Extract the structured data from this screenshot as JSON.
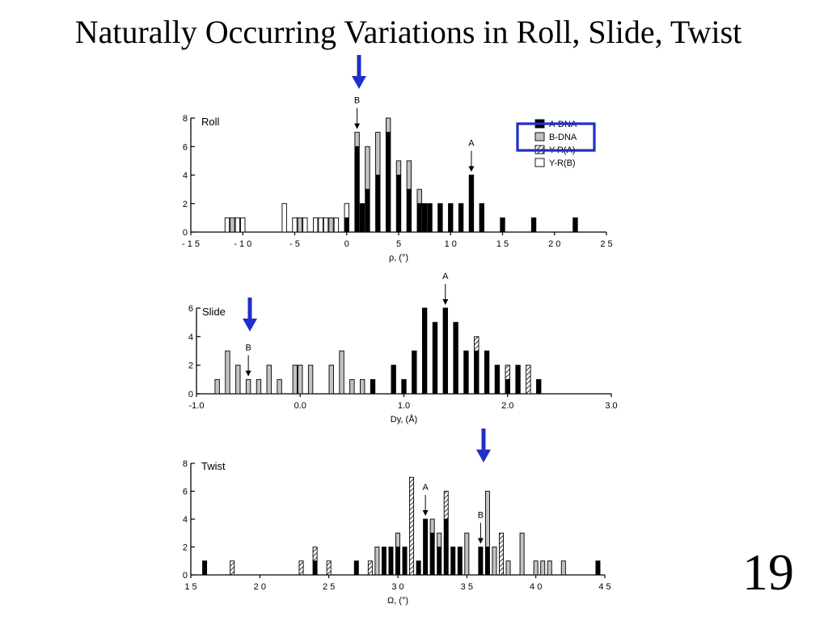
{
  "slide": {
    "title": "Naturally Occurring Variations in Roll, Slide, Twist",
    "number": "19",
    "highlight_color": "#1f2fc8"
  },
  "legend": {
    "items": [
      {
        "key": "A",
        "label": "A-DNA",
        "fill": "black"
      },
      {
        "key": "B",
        "label": "B-DNA",
        "fill": "gray"
      },
      {
        "key": "YA",
        "label": "Y-R(A)",
        "fill": "hatch"
      },
      {
        "key": "YB",
        "label": "Y-R(B)",
        "fill": "white"
      }
    ]
  },
  "chart_data": [
    {
      "type": "bar",
      "panel": "Roll",
      "title": "Roll",
      "xlabel": "ρ, (°)",
      "xlim": [
        -15,
        25
      ],
      "ylim": [
        0,
        8
      ],
      "xticks": [
        -15,
        -10,
        -5,
        0,
        5,
        10,
        15,
        20,
        25
      ],
      "xtick_labels": [
        "- 1 5",
        "- 1 0",
        "- 5",
        "0",
        "5",
        "1 0",
        "1 5",
        "2 0",
        "2 5"
      ],
      "yticks": [
        0,
        2,
        4,
        6,
        8
      ],
      "ytick_labels": [
        "0",
        "2",
        "4",
        "6",
        "8"
      ],
      "bar_width": 0.5,
      "series_order": [
        "A",
        "B",
        "YA",
        "YB"
      ],
      "bars": [
        {
          "x": -11.5,
          "A": 0,
          "B": 0,
          "YA": 0,
          "YB": 1
        },
        {
          "x": -11,
          "A": 0,
          "B": 1,
          "YA": 0,
          "YB": 0
        },
        {
          "x": -10.5,
          "A": 0,
          "B": 0,
          "YA": 0,
          "YB": 1
        },
        {
          "x": -10,
          "A": 0,
          "B": 0,
          "YA": 0,
          "YB": 1
        },
        {
          "x": -6,
          "A": 0,
          "B": 0,
          "YA": 0,
          "YB": 2
        },
        {
          "x": -5,
          "A": 0,
          "B": 0,
          "YA": 0,
          "YB": 1
        },
        {
          "x": -4.5,
          "A": 0,
          "B": 1,
          "YA": 0,
          "YB": 0
        },
        {
          "x": -4,
          "A": 0,
          "B": 0,
          "YA": 0,
          "YB": 1
        },
        {
          "x": -3,
          "A": 0,
          "B": 0,
          "YA": 0,
          "YB": 1
        },
        {
          "x": -2.5,
          "A": 0,
          "B": 0,
          "YA": 0,
          "YB": 1
        },
        {
          "x": -2,
          "A": 0,
          "B": 0,
          "YA": 0,
          "YB": 1
        },
        {
          "x": -1.5,
          "A": 0,
          "B": 1,
          "YA": 0,
          "YB": 0
        },
        {
          "x": -1,
          "A": 0,
          "B": 0,
          "YA": 0,
          "YB": 1
        },
        {
          "x": 0,
          "A": 1,
          "B": 0,
          "YA": 0,
          "YB": 1
        },
        {
          "x": 1,
          "A": 6,
          "B": 1,
          "YA": 0,
          "YB": 0
        },
        {
          "x": 1.5,
          "A": 2,
          "B": 0,
          "YA": 0,
          "YB": 0
        },
        {
          "x": 2,
          "A": 3,
          "B": 3,
          "YA": 0,
          "YB": 0
        },
        {
          "x": 3,
          "A": 4,
          "B": 3,
          "YA": 0,
          "YB": 0
        },
        {
          "x": 4,
          "A": 7,
          "B": 1,
          "YA": 0,
          "YB": 0
        },
        {
          "x": 5,
          "A": 4,
          "B": 1,
          "YA": 0,
          "YB": 0
        },
        {
          "x": 6,
          "A": 3,
          "B": 2,
          "YA": 0,
          "YB": 0
        },
        {
          "x": 7,
          "A": 2,
          "B": 1,
          "YA": 0,
          "YB": 0
        },
        {
          "x": 7.5,
          "A": 2,
          "B": 0,
          "YA": 0,
          "YB": 0
        },
        {
          "x": 8,
          "A": 2,
          "B": 0,
          "YA": 0,
          "YB": 0
        },
        {
          "x": 9,
          "A": 2,
          "B": 0,
          "YA": 0,
          "YB": 0
        },
        {
          "x": 10,
          "A": 2,
          "B": 0,
          "YA": 0,
          "YB": 0
        },
        {
          "x": 11,
          "A": 2,
          "B": 0,
          "YA": 0,
          "YB": 0
        },
        {
          "x": 12,
          "A": 4,
          "B": 0,
          "YA": 0,
          "YB": 0
        },
        {
          "x": 13,
          "A": 2,
          "B": 0,
          "YA": 0,
          "YB": 0
        },
        {
          "x": 15,
          "A": 1,
          "B": 0,
          "YA": 0,
          "YB": 0
        },
        {
          "x": 18,
          "A": 1,
          "B": 0,
          "YA": 0,
          "YB": 0
        },
        {
          "x": 22,
          "A": 1,
          "B": 0,
          "YA": 0,
          "YB": 0
        }
      ],
      "annotations": [
        {
          "label": "B",
          "x": 1
        },
        {
          "label": "A",
          "x": 12
        }
      ]
    },
    {
      "type": "bar",
      "panel": "Slide",
      "title": "Slide",
      "xlabel": "Dy, (Å)",
      "xlim": [
        -1.0,
        3.0
      ],
      "ylim": [
        0,
        6
      ],
      "xticks": [
        -1.0,
        0.0,
        1.0,
        2.0,
        3.0
      ],
      "xtick_labels": [
        "-1.0",
        "0.0",
        "1.0",
        "2.0",
        "3.0"
      ],
      "yticks": [
        0,
        2,
        4,
        6
      ],
      "ytick_labels": [
        "0",
        "2",
        "4",
        "6"
      ],
      "bar_width": 0.05,
      "series_order": [
        "A",
        "B",
        "YA",
        "YB"
      ],
      "bars": [
        {
          "x": -0.8,
          "A": 0,
          "B": 1,
          "YA": 0,
          "YB": 0
        },
        {
          "x": -0.7,
          "A": 0,
          "B": 3,
          "YA": 0,
          "YB": 0
        },
        {
          "x": -0.6,
          "A": 0,
          "B": 2,
          "YA": 0,
          "YB": 0
        },
        {
          "x": -0.5,
          "A": 0,
          "B": 1,
          "YA": 0,
          "YB": 0
        },
        {
          "x": -0.4,
          "A": 0,
          "B": 1,
          "YA": 0,
          "YB": 0
        },
        {
          "x": -0.3,
          "A": 0,
          "B": 2,
          "YA": 0,
          "YB": 0
        },
        {
          "x": -0.2,
          "A": 0,
          "B": 1,
          "YA": 0,
          "YB": 0
        },
        {
          "x": -0.05,
          "A": 0,
          "B": 2,
          "YA": 0,
          "YB": 0
        },
        {
          "x": 0.0,
          "A": 0,
          "B": 2,
          "YA": 0,
          "YB": 0
        },
        {
          "x": 0.1,
          "A": 0,
          "B": 2,
          "YA": 0,
          "YB": 0
        },
        {
          "x": 0.3,
          "A": 0,
          "B": 2,
          "YA": 0,
          "YB": 0
        },
        {
          "x": 0.4,
          "A": 0,
          "B": 3,
          "YA": 0,
          "YB": 0
        },
        {
          "x": 0.5,
          "A": 0,
          "B": 1,
          "YA": 0,
          "YB": 0
        },
        {
          "x": 0.6,
          "A": 0,
          "B": 1,
          "YA": 0,
          "YB": 0
        },
        {
          "x": 0.7,
          "A": 1,
          "B": 0,
          "YA": 0,
          "YB": 0
        },
        {
          "x": 0.9,
          "A": 2,
          "B": 0,
          "YA": 0,
          "YB": 0
        },
        {
          "x": 1.0,
          "A": 1,
          "B": 0,
          "YA": 0,
          "YB": 0
        },
        {
          "x": 1.1,
          "A": 3,
          "B": 0,
          "YA": 0,
          "YB": 0
        },
        {
          "x": 1.2,
          "A": 6,
          "B": 0,
          "YA": 0,
          "YB": 0
        },
        {
          "x": 1.3,
          "A": 5,
          "B": 0,
          "YA": 0,
          "YB": 0
        },
        {
          "x": 1.4,
          "A": 6,
          "B": 0,
          "YA": 0,
          "YB": 0
        },
        {
          "x": 1.5,
          "A": 5,
          "B": 0,
          "YA": 0,
          "YB": 0
        },
        {
          "x": 1.6,
          "A": 3,
          "B": 0,
          "YA": 0,
          "YB": 0
        },
        {
          "x": 1.7,
          "A": 3,
          "B": 0,
          "YA": 1,
          "YB": 0
        },
        {
          "x": 1.8,
          "A": 3,
          "B": 0,
          "YA": 0,
          "YB": 0
        },
        {
          "x": 1.9,
          "A": 2,
          "B": 0,
          "YA": 0,
          "YB": 0
        },
        {
          "x": 2.0,
          "A": 1,
          "B": 0,
          "YA": 1,
          "YB": 0
        },
        {
          "x": 2.1,
          "A": 2,
          "B": 0,
          "YA": 0,
          "YB": 0
        },
        {
          "x": 2.2,
          "A": 0,
          "B": 0,
          "YA": 2,
          "YB": 0
        },
        {
          "x": 2.3,
          "A": 1,
          "B": 0,
          "YA": 0,
          "YB": 0
        }
      ],
      "annotations": [
        {
          "label": "B",
          "x": -0.5
        },
        {
          "label": "A",
          "x": 1.4
        }
      ]
    },
    {
      "type": "bar",
      "panel": "Twist",
      "title": "Twist",
      "xlabel": "Ω, (°)",
      "xlim": [
        15,
        45
      ],
      "ylim": [
        0,
        8
      ],
      "xticks": [
        15,
        20,
        25,
        30,
        35,
        40,
        45
      ],
      "xtick_labels": [
        "1 5",
        "2 0",
        "2 5",
        "3 0",
        "3 5",
        "4 0",
        "4 5"
      ],
      "yticks": [
        0,
        2,
        4,
        6,
        8
      ],
      "ytick_labels": [
        "0",
        "2",
        "4",
        "6",
        "8"
      ],
      "bar_width": 0.35,
      "series_order": [
        "A",
        "B",
        "YA",
        "YB"
      ],
      "bars": [
        {
          "x": 16,
          "A": 1,
          "B": 0,
          "YA": 0,
          "YB": 0
        },
        {
          "x": 18,
          "A": 0,
          "B": 0,
          "YA": 1,
          "YB": 0
        },
        {
          "x": 23,
          "A": 0,
          "B": 0,
          "YA": 1,
          "YB": 0
        },
        {
          "x": 24,
          "A": 1,
          "B": 0,
          "YA": 1,
          "YB": 0
        },
        {
          "x": 25,
          "A": 0,
          "B": 0,
          "YA": 1,
          "YB": 0
        },
        {
          "x": 27,
          "A": 1,
          "B": 0,
          "YA": 0,
          "YB": 0
        },
        {
          "x": 28,
          "A": 0,
          "B": 0,
          "YA": 1,
          "YB": 0
        },
        {
          "x": 28.5,
          "A": 0,
          "B": 2,
          "YA": 0,
          "YB": 0
        },
        {
          "x": 29,
          "A": 2,
          "B": 0,
          "YA": 0,
          "YB": 0
        },
        {
          "x": 29.5,
          "A": 2,
          "B": 0,
          "YA": 0,
          "YB": 0
        },
        {
          "x": 30,
          "A": 2,
          "B": 1,
          "YA": 0,
          "YB": 0
        },
        {
          "x": 30.5,
          "A": 2,
          "B": 0,
          "YA": 0,
          "YB": 0
        },
        {
          "x": 31,
          "A": 0,
          "B": 0,
          "YA": 7,
          "YB": 0
        },
        {
          "x": 31.5,
          "A": 1,
          "B": 0,
          "YA": 0,
          "YB": 0
        },
        {
          "x": 32,
          "A": 4,
          "B": 0,
          "YA": 0,
          "YB": 0
        },
        {
          "x": 32.5,
          "A": 3,
          "B": 1,
          "YA": 0,
          "YB": 0
        },
        {
          "x": 33,
          "A": 2,
          "B": 1,
          "YA": 0,
          "YB": 0
        },
        {
          "x": 33.5,
          "A": 4,
          "B": 0,
          "YA": 2,
          "YB": 0
        },
        {
          "x": 34,
          "A": 2,
          "B": 0,
          "YA": 0,
          "YB": 0
        },
        {
          "x": 34.5,
          "A": 2,
          "B": 0,
          "YA": 0,
          "YB": 0
        },
        {
          "x": 35,
          "A": 0,
          "B": 3,
          "YA": 0,
          "YB": 0
        },
        {
          "x": 36,
          "A": 2,
          "B": 0,
          "YA": 0,
          "YB": 0
        },
        {
          "x": 36.5,
          "A": 2,
          "B": 4,
          "YA": 0,
          "YB": 0
        },
        {
          "x": 37,
          "A": 0,
          "B": 2,
          "YA": 0,
          "YB": 0
        },
        {
          "x": 37.5,
          "A": 0,
          "B": 0,
          "YA": 3,
          "YB": 0
        },
        {
          "x": 38,
          "A": 0,
          "B": 1,
          "YA": 0,
          "YB": 0
        },
        {
          "x": 39,
          "A": 0,
          "B": 3,
          "YA": 0,
          "YB": 0
        },
        {
          "x": 40,
          "A": 0,
          "B": 1,
          "YA": 0,
          "YB": 0
        },
        {
          "x": 40.5,
          "A": 0,
          "B": 1,
          "YA": 0,
          "YB": 0
        },
        {
          "x": 41,
          "A": 0,
          "B": 1,
          "YA": 0,
          "YB": 0
        },
        {
          "x": 42,
          "A": 0,
          "B": 1,
          "YA": 0,
          "YB": 0
        },
        {
          "x": 44.5,
          "A": 1,
          "B": 0,
          "YA": 0,
          "YB": 0
        }
      ],
      "annotations": [
        {
          "label": "A",
          "x": 32
        },
        {
          "label": "B",
          "x": 36
        }
      ]
    }
  ]
}
